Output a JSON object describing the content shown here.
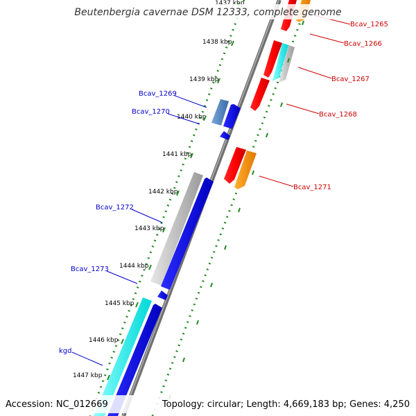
{
  "title": "Beutenbergia cavernae DSM 12333, complete genome",
  "footer": {
    "accession": "Accession: NC_012669",
    "summary": "Topology: circular; Length: 4,669,183 bp; Genes: 4,250"
  },
  "colors": {
    "reverse_label": "#0000cc",
    "forward_label": "#cc0000",
    "tick": "#228b22",
    "backbone": "#808080"
  },
  "ticks": [
    "1437 kbp",
    "1438 kbp",
    "1439 kbp",
    "1440 kbp",
    "1441 kbp",
    "1442 kbp",
    "1443 kbp",
    "1444 kbp",
    "1445 kbp",
    "1446 kbp",
    "1447 kbp"
  ],
  "reverse_labels": [
    "Bcav_1269",
    "Bcav_1270",
    "Bcav_1272",
    "Bcav_1273",
    "kgd"
  ],
  "forward_labels": [
    "Bcav_1265",
    "Bcav_1266",
    "Bcav_1267",
    "Bcav_1268",
    "Bcav_1271"
  ]
}
